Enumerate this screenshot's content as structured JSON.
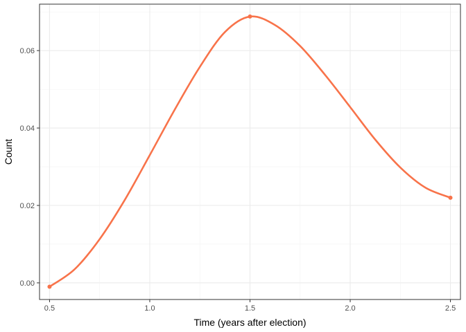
{
  "chart_data": {
    "type": "line",
    "title": "",
    "xlabel": "Time (years after election)",
    "ylabel": "Count",
    "xlim": [
      0.45,
      2.55
    ],
    "ylim": [
      -0.0043,
      0.072
    ],
    "x_ticks": [
      0.5,
      1.0,
      1.5,
      2.0,
      2.5
    ],
    "x_tick_labels": [
      "0.5",
      "1.0",
      "1.5",
      "2.0",
      "2.5"
    ],
    "y_ticks": [
      0.0,
      0.02,
      0.04,
      0.06
    ],
    "y_tick_labels": [
      "0.00",
      "0.02",
      "0.04",
      "0.06"
    ],
    "grid": true,
    "legend": "none",
    "colors": {
      "series": "#F8734A",
      "grid_major": "#EBEBEB",
      "grid_minor": "#F3F3F3",
      "border": "#333333"
    },
    "points": [
      {
        "x": 0.5,
        "y": -0.001
      },
      {
        "x": 1.5,
        "y": 0.0688
      },
      {
        "x": 2.5,
        "y": 0.022
      }
    ],
    "curve": [
      {
        "x": 0.5,
        "y": -0.001
      },
      {
        "x": 0.625,
        "y": 0.0035
      },
      {
        "x": 0.75,
        "y": 0.0113
      },
      {
        "x": 0.875,
        "y": 0.0214
      },
      {
        "x": 1.0,
        "y": 0.033
      },
      {
        "x": 1.125,
        "y": 0.0448
      },
      {
        "x": 1.25,
        "y": 0.0558
      },
      {
        "x": 1.375,
        "y": 0.0648
      },
      {
        "x": 1.5,
        "y": 0.0688
      },
      {
        "x": 1.625,
        "y": 0.0666
      },
      {
        "x": 1.75,
        "y": 0.0612
      },
      {
        "x": 1.875,
        "y": 0.0537
      },
      {
        "x": 2.0,
        "y": 0.0454
      },
      {
        "x": 2.125,
        "y": 0.037
      },
      {
        "x": 2.25,
        "y": 0.0298
      },
      {
        "x": 2.375,
        "y": 0.0246
      },
      {
        "x": 2.5,
        "y": 0.022
      }
    ]
  }
}
